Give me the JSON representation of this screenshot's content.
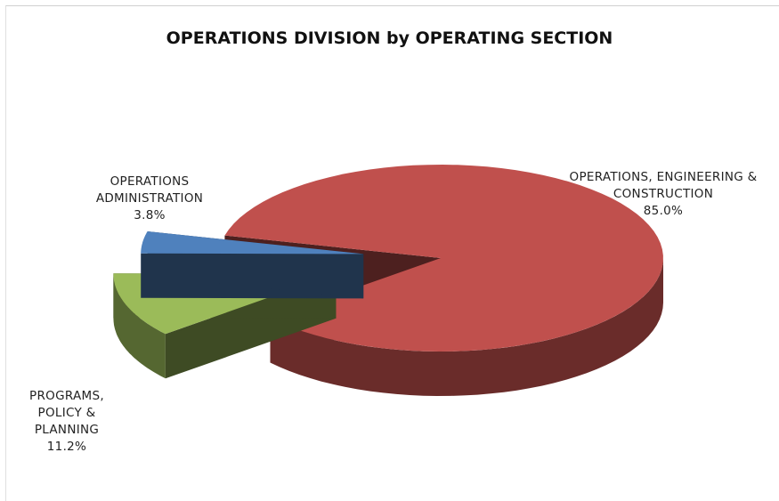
{
  "chart_data": {
    "type": "pie3d",
    "title": "OPERATIONS DIVISION by OPERATING SECTION",
    "categories": [
      "OPERATIONS, ENGINEERING & CONSTRUCTION",
      "PROGRAMS, POLICY & PLANNING",
      "OPERATIONS ADMINISTRATION"
    ],
    "values": [
      85.0,
      11.2,
      3.8
    ],
    "value_labels": [
      "85.0%",
      "11.2%",
      "3.8%"
    ],
    "colors": [
      "#c0504d",
      "#9bbb59",
      "#4f81bd"
    ]
  }
}
